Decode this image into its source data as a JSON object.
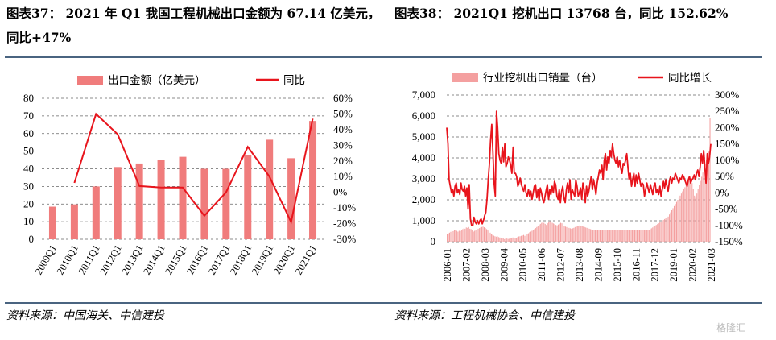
{
  "header": {
    "left_title_line1": "图表37： 2021 年 Q1 我国工程机械出口金额为 67.14 亿美元，",
    "left_title_line2": "同比+47%",
    "right_title": "图表38： 2021Q1 挖机出口 13768 台，同比 152.62%"
  },
  "sources": {
    "left": "资料来源：中国海关、中信建投",
    "right": "资料来源：工程机械协会、中信建投"
  },
  "watermark": "格隆汇",
  "colors": {
    "bar_left": "#f07c7c",
    "bar_right": "#f4a0a0",
    "line": "#e8141c",
    "rule": "#4a6480"
  },
  "chart_data": [
    {
      "type": "bar",
      "legend": [
        "出口金额（亿美元）",
        "同比"
      ],
      "categories": [
        "2009Q1",
        "2010Q1",
        "2011Q1",
        "2012Q1",
        "2013Q1",
        "2014Q1",
        "2015Q1",
        "2016Q1",
        "2017Q1",
        "2018Q1",
        "2019Q1",
        "2020Q1",
        "2021Q1"
      ],
      "series": [
        {
          "name": "出口金额（亿美元）",
          "type": "bar",
          "axis": "left",
          "values": [
            18.5,
            19.8,
            30.0,
            41.0,
            43.0,
            44.8,
            46.8,
            40.0,
            40.0,
            48.0,
            56.5,
            46.0,
            67.14
          ]
        },
        {
          "name": "同比",
          "type": "line",
          "axis": "right",
          "values": [
            null,
            6,
            50,
            37,
            4,
            3,
            3,
            -15,
            0,
            29,
            10,
            -19,
            47
          ]
        }
      ],
      "ylim": [
        0,
        80
      ],
      "y_ticks": [
        0,
        10,
        20,
        30,
        40,
        50,
        60,
        70,
        80
      ],
      "y2lim": [
        -30,
        60
      ],
      "y2_ticks": [
        "-30%",
        "-20%",
        "-10%",
        "0%",
        "10%",
        "20%",
        "30%",
        "40%",
        "50%",
        "60%"
      ],
      "grid": true,
      "legend_position": "top"
    },
    {
      "type": "bar",
      "legend": [
        "行业挖机出口销量（台）",
        "同比增长"
      ],
      "x_tick_labels": [
        "2006-01",
        "2007-02",
        "2008-03",
        "2009-04",
        "2010-05",
        "2011-06",
        "2012-07",
        "2013-08",
        "2014-09",
        "2015-10",
        "2016-11",
        "2017-12",
        "2019-01",
        "2020-02",
        "2021-03"
      ],
      "ylim": [
        0,
        7000
      ],
      "y_ticks": [
        "0",
        "1,000",
        "2,000",
        "3,000",
        "4,000",
        "5,000",
        "6,000",
        "7,000"
      ],
      "y2lim": [
        -150,
        300
      ],
      "y2_ticks": [
        "-150%",
        "-100%",
        "-50%",
        "0%",
        "50%",
        "100%",
        "150%",
        "200%",
        "250%",
        "300%"
      ],
      "grid": true,
      "legend_position": "top",
      "series": [
        {
          "name": "行业挖机出口销量（台）",
          "type": "bar",
          "axis": "left",
          "values": [
            380,
            400,
            430,
            470,
            520,
            500,
            540,
            560,
            520,
            480,
            520,
            500,
            560,
            600,
            640,
            620,
            680,
            660,
            700,
            620,
            600,
            540,
            480,
            520,
            560,
            600,
            620,
            650,
            680,
            700,
            720,
            690,
            650,
            600,
            560,
            500,
            430,
            380,
            330,
            290,
            260,
            240,
            260,
            220,
            200,
            180,
            160,
            150,
            120,
            180,
            150,
            130,
            140,
            160,
            180,
            200,
            170,
            160,
            190,
            220,
            250,
            260,
            280,
            300,
            320,
            280,
            350,
            380,
            400,
            450,
            480,
            520,
            560,
            600,
            650,
            700,
            760,
            800,
            850,
            900,
            950,
            900,
            850,
            800,
            880,
            930,
            980,
            950,
            900,
            870,
            840,
            800,
            780,
            820,
            860,
            900,
            880,
            820,
            760,
            720,
            700,
            680,
            660,
            640,
            620,
            640,
            660,
            700,
            720,
            740,
            760,
            780,
            760,
            740,
            720,
            700,
            680,
            660,
            640,
            620,
            600,
            580,
            560,
            560,
            560,
            560,
            560,
            560,
            560,
            560,
            560,
            560,
            560,
            560,
            560,
            560,
            560,
            560,
            560,
            560,
            560,
            560,
            560,
            560,
            560,
            560,
            560,
            560,
            560,
            560,
            560,
            560,
            560,
            560,
            560,
            560,
            560,
            560,
            560,
            560,
            560,
            560,
            560,
            560,
            560,
            560,
            560,
            560,
            560,
            560,
            600,
            640,
            680,
            720,
            760,
            800,
            840,
            880,
            920,
            960,
            1000,
            1040,
            1080,
            1120,
            1160,
            1200,
            1300,
            1400,
            1500,
            1600,
            1700,
            1800,
            1900,
            2000,
            2100,
            2200,
            2300,
            2400,
            2500,
            2600,
            2700,
            2800,
            2900,
            3000,
            3050,
            2800,
            2500,
            2200,
            2100,
            2300,
            2500,
            2700,
            2900,
            3100,
            3300,
            3500,
            3700,
            3900,
            4100,
            4300,
            5900
          ]
        },
        {
          "name": "同比增长",
          "type": "line",
          "axis": "right",
          "values": [
            200,
            150,
            40,
            20,
            0,
            10,
            -10,
            20,
            30,
            0,
            10,
            -5,
            30,
            10,
            5,
            20,
            -10,
            15,
            -50,
            25,
            -80,
            -100,
            -100,
            -75,
            -90,
            -95,
            -85,
            -95,
            -85,
            -80,
            -95,
            -85,
            -70,
            -60,
            -20,
            40,
            90,
            160,
            210,
            120,
            30,
            -10,
            250,
            200,
            120,
            100,
            90,
            140,
            95,
            150,
            80,
            90,
            110,
            100,
            85,
            60,
            140,
            60,
            60,
            50,
            20,
            30,
            45,
            25,
            15,
            5,
            25,
            0,
            -10,
            10,
            -10,
            5,
            -20,
            0,
            20,
            25,
            -15,
            10,
            -25,
            15,
            0,
            -20,
            -30,
            -10,
            10,
            25,
            -20,
            10,
            -5,
            20,
            0,
            35,
            25,
            -10,
            -20,
            10,
            -30,
            5,
            20,
            -15,
            -30,
            10,
            30,
            0,
            40,
            -20,
            10,
            0,
            -10,
            40,
            20,
            -10,
            0,
            15,
            -20,
            30,
            10,
            -30,
            20,
            -10,
            5,
            30,
            50,
            10,
            40,
            20,
            -5,
            30,
            50,
            70,
            60,
            85,
            40,
            100,
            120,
            70,
            110,
            90,
            130,
            110,
            150,
            120,
            100,
            90,
            110,
            80,
            100,
            75,
            60,
            90,
            85,
            100,
            120,
            80,
            40,
            60,
            20,
            40,
            60,
            20,
            55,
            30,
            60,
            40,
            20,
            30,
            25,
            -10,
            10,
            30,
            15,
            0,
            25,
            10,
            -5,
            20,
            30,
            0,
            10,
            -5,
            20,
            -10,
            10,
            35,
            15,
            40,
            20,
            5,
            35,
            50,
            30,
            45,
            40,
            60,
            50,
            40,
            30,
            45,
            40,
            55,
            50,
            40,
            30,
            20,
            40,
            50,
            30,
            40,
            45,
            55,
            40,
            60,
            70,
            50,
            80,
            120,
            90,
            130,
            80,
            30,
            120,
            90,
            110,
            150
          ]
        }
      ]
    }
  ]
}
